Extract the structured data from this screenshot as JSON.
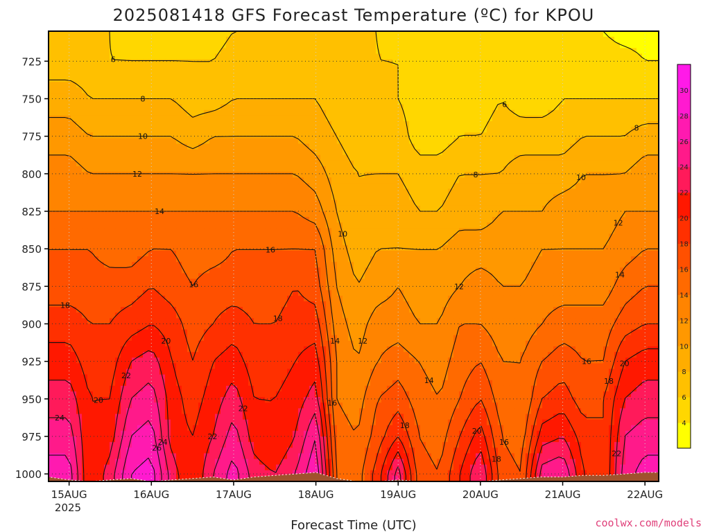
{
  "title": "2025081418 GFS Forecast Temperature (ºC) for KPOU",
  "xlabel": "Forecast Time (UTC)",
  "brand": "coolwx.com/models",
  "x_year": "2025",
  "colors": {
    "ground": "#a0522d",
    "contour": "#111111"
  },
  "colorbar": {
    "levels": [
      2,
      4,
      6,
      8,
      10,
      12,
      14,
      16,
      18,
      20,
      22,
      24,
      26,
      28,
      30,
      32
    ],
    "labels": [
      "4",
      "6",
      "8",
      "10",
      "12",
      "14",
      "16",
      "18",
      "20",
      "22",
      "24",
      "26",
      "28",
      "30"
    ],
    "colors": [
      "#ffff00",
      "#ffd700",
      "#ffc000",
      "#ffad00",
      "#ff9800",
      "#ff8400",
      "#ff6a00",
      "#ff5000",
      "#ff3000",
      "#ff1800",
      "#ff1a5a",
      "#ff1a8a",
      "#ff1ab0",
      "#ff1ad0",
      "#ff1ae8"
    ]
  },
  "chart_data": {
    "type": "heatmap",
    "title": "2025081418 GFS Forecast Temperature (ºC) for KPOU",
    "xlabel": "Forecast Time (UTC)",
    "ylabel": "",
    "x_tick_labels": [
      "15AUG",
      "16AUG",
      "17AUG",
      "18AUG",
      "19AUG",
      "20AUG",
      "21AUG",
      "22AUG"
    ],
    "y_tick_labels": [
      "725",
      "750",
      "775",
      "800",
      "825",
      "850",
      "875",
      "900",
      "925",
      "950",
      "975",
      "1000"
    ],
    "y_unit": "hPa",
    "ylim": [
      1005,
      705
    ],
    "x_range_days": [
      14.75,
      22.167
    ],
    "grid": true,
    "contour_interval": 2,
    "contour_labels": [
      "4",
      "6",
      "8",
      "10",
      "12",
      "14",
      "16",
      "18",
      "20",
      "22",
      "24",
      "26"
    ],
    "x_days": [
      14.75,
      15.0,
      15.25,
      15.5,
      15.75,
      16.0,
      16.25,
      16.5,
      16.75,
      17.0,
      17.25,
      17.5,
      17.75,
      18.0,
      18.25,
      18.5,
      18.75,
      19.0,
      19.25,
      19.5,
      19.75,
      20.0,
      20.25,
      20.5,
      20.75,
      21.0,
      21.25,
      21.5,
      21.75,
      22.0,
      22.167
    ],
    "pressure_levels": [
      1000,
      975,
      950,
      925,
      900,
      875,
      850,
      825,
      800,
      775,
      750,
      725,
      705
    ],
    "temperature_c": [
      [
        27,
        27,
        20,
        23,
        28,
        29,
        23,
        20,
        24,
        27,
        23,
        22,
        24,
        28,
        16,
        15,
        19,
        25,
        17,
        16,
        20,
        24,
        17,
        16,
        25,
        26,
        20,
        18,
        25,
        27,
        27
      ],
      [
        25,
        25,
        20,
        21,
        26,
        27,
        21,
        20,
        22,
        25,
        21,
        20,
        22,
        26,
        15,
        14,
        17,
        20,
        16,
        15,
        18,
        21,
        16,
        15,
        21,
        22,
        19,
        18,
        24,
        25,
        25
      ],
      [
        23,
        23,
        20,
        20,
        24,
        25,
        21,
        19,
        21,
        23,
        20,
        20,
        21,
        23,
        14,
        13,
        16,
        17,
        15,
        14,
        16,
        18,
        15,
        14,
        18,
        19,
        17,
        18,
        22,
        23,
        23
      ],
      [
        21,
        21,
        19,
        19,
        22,
        23,
        20,
        18,
        20,
        21,
        19,
        19,
        20,
        21,
        14,
        12,
        14,
        15,
        14,
        13,
        15,
        16,
        14,
        14,
        16,
        17,
        16,
        16,
        20,
        21,
        21
      ],
      [
        19,
        19,
        18,
        18,
        19,
        20,
        19,
        17,
        18,
        19,
        18,
        18,
        19,
        19,
        13,
        11,
        13,
        13,
        12,
        12,
        14,
        14,
        13,
        13,
        14,
        15,
        15,
        15,
        17,
        18,
        18
      ],
      [
        17,
        17,
        17,
        17,
        17,
        18,
        17,
        16,
        17,
        17,
        17,
        17,
        18,
        17,
        12,
        10,
        11,
        12,
        11,
        11,
        12,
        13,
        12,
        12,
        13,
        13,
        13,
        13,
        15,
        16,
        16
      ],
      [
        16,
        16,
        16,
        15,
        15,
        16,
        16,
        15,
        15,
        16,
        16,
        16,
        16,
        16,
        11,
        9,
        10,
        10,
        10,
        10,
        11,
        11,
        11,
        11,
        12,
        12,
        12,
        12,
        13,
        14,
        14
      ],
      [
        14,
        14,
        14,
        14,
        14,
        14,
        14,
        14,
        14,
        14,
        14,
        14,
        14,
        13,
        10,
        8,
        9,
        9,
        8,
        8,
        9,
        9,
        10,
        10,
        10,
        11,
        11,
        11,
        12,
        12,
        12
      ],
      [
        13,
        13,
        12,
        12,
        12,
        12,
        12,
        12,
        12,
        12,
        12,
        12,
        12,
        11,
        9,
        8,
        8,
        8,
        7,
        7,
        8,
        8,
        8,
        9,
        9,
        9,
        10,
        10,
        10,
        11,
        11
      ],
      [
        11,
        11,
        10,
        10,
        10,
        10,
        10,
        9,
        10,
        10,
        10,
        10,
        10,
        9,
        8,
        7,
        7,
        7,
        5,
        5,
        6,
        6,
        7,
        7,
        7,
        7,
        8,
        8,
        8,
        9,
        9
      ],
      [
        9,
        9,
        8,
        8,
        8,
        8,
        8,
        7,
        7,
        8,
        8,
        8,
        8,
        8,
        7,
        7,
        7,
        6,
        5,
        5,
        5,
        5,
        6,
        5,
        5,
        6,
        6,
        6,
        6,
        6,
        6
      ],
      [
        7,
        7,
        7,
        6,
        6,
        6,
        6,
        6,
        6,
        7,
        7,
        7,
        7,
        7,
        7,
        7,
        6,
        6,
        5,
        5,
        5,
        5,
        4,
        5,
        5,
        4,
        5,
        5,
        5,
        4,
        4
      ],
      [
        6,
        6,
        6,
        6,
        5,
        5,
        5,
        5,
        5,
        6,
        6,
        6,
        7,
        6,
        6,
        6,
        6,
        5,
        5,
        5,
        4,
        4,
        4,
        4,
        4,
        4,
        4,
        4,
        3,
        3,
        3
      ]
    ],
    "ground_pressure_hpa": [
      [
        14.75,
        1002
      ],
      [
        15.0,
        1004
      ],
      [
        15.25,
        1005
      ],
      [
        15.5,
        1004
      ],
      [
        15.75,
        1003
      ],
      [
        16.0,
        1005
      ],
      [
        16.25,
        1004
      ],
      [
        16.5,
        1003
      ],
      [
        16.75,
        1002
      ],
      [
        17.0,
        1004
      ],
      [
        17.25,
        1002
      ],
      [
        17.5,
        1001
      ],
      [
        17.75,
        1000
      ],
      [
        18.0,
        999
      ],
      [
        18.25,
        1003
      ],
      [
        18.5,
        1005
      ],
      [
        18.75,
        1005
      ],
      [
        19.0,
        1004
      ],
      [
        19.25,
        1005
      ],
      [
        19.5,
        1005
      ],
      [
        19.75,
        1005
      ],
      [
        20.0,
        1005
      ],
      [
        20.25,
        1004
      ],
      [
        20.5,
        1003
      ],
      [
        20.75,
        1002
      ],
      [
        21.0,
        1002
      ],
      [
        21.25,
        1001
      ],
      [
        21.5,
        1001
      ],
      [
        21.75,
        1000
      ],
      [
        22.0,
        999
      ],
      [
        22.167,
        999
      ]
    ]
  }
}
